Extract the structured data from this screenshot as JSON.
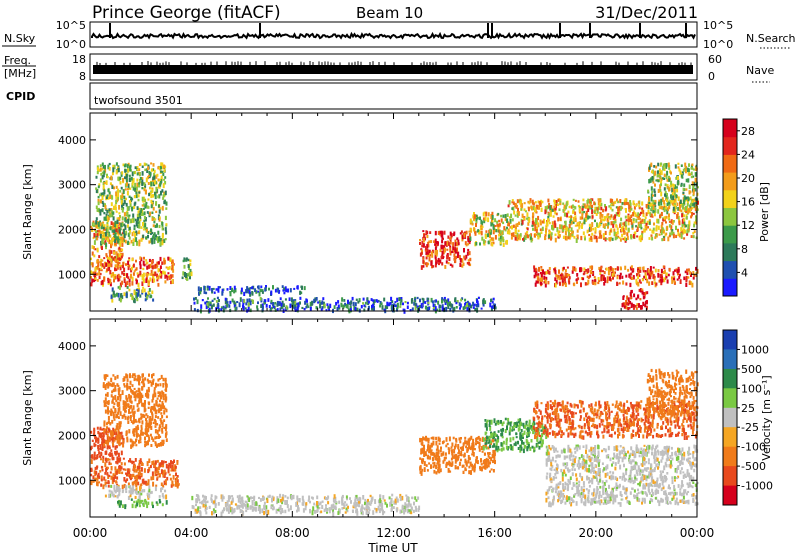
{
  "header": {
    "station": "Prince George (fitACF)",
    "beam": "Beam 10",
    "date": "31/Dec/2011"
  },
  "top_panels": {
    "nsky_label": "N.Sky",
    "nsky_ticks": [
      "10^5",
      "10^0"
    ],
    "nsearch_label": "N.Search",
    "nsearch_ticks": [
      "10^5",
      "10^0"
    ],
    "freq_label_1": "Freq.",
    "freq_label_2": "[MHz]",
    "freq_ticks": [
      "18",
      "8"
    ],
    "nave_label": "Nave",
    "nave_ticks": [
      "60",
      "0"
    ],
    "cpid_label": "CPID",
    "cpid_value": "twofsound 3501"
  },
  "chart_data": [
    {
      "type": "heatmap",
      "name": "power",
      "xlabel": "Time UT",
      "ylabel": "Slant Range [km]",
      "xlim": [
        0,
        24
      ],
      "ylim": [
        180,
        4600
      ],
      "yticks": [
        "1000",
        "2000",
        "3000",
        "4000"
      ],
      "colorbar_label": "Power [dB]",
      "colorbar_ticks": [
        "4",
        "8",
        "12",
        "16",
        "20",
        "24",
        "28"
      ],
      "colorbar_range": [
        0,
        30
      ],
      "colors": [
        "#1a1aff",
        "#1f4fb0",
        "#2d7a5a",
        "#3c9a4a",
        "#8cc63f",
        "#f2d21a",
        "#f39c1a",
        "#f06a14",
        "#e2261d",
        "#d6001c"
      ],
      "regions": [
        {
          "t0": 0.0,
          "t1": 1.3,
          "r0": 1300,
          "r1": 2200,
          "value": 20
        },
        {
          "t0": 0.0,
          "t1": 3.3,
          "r0": 800,
          "r1": 1400,
          "value": 22
        },
        {
          "t0": 0.2,
          "t1": 3.0,
          "r0": 1700,
          "r1": 3500,
          "value": 13
        },
        {
          "t0": 0.8,
          "t1": 2.5,
          "r0": 450,
          "r1": 750,
          "value": 10
        },
        {
          "t0": 3.6,
          "t1": 4.0,
          "r0": 900,
          "r1": 1400,
          "value": 11
        },
        {
          "t0": 4.2,
          "t1": 8.5,
          "r0": 600,
          "r1": 760,
          "value": 5
        },
        {
          "t0": 4.0,
          "t1": 16.0,
          "r0": 220,
          "r1": 500,
          "value": 6
        },
        {
          "t0": 13.0,
          "t1": 15.0,
          "r0": 1200,
          "r1": 2000,
          "value": 26
        },
        {
          "t0": 15.0,
          "t1": 16.5,
          "r0": 1700,
          "r1": 2400,
          "value": 16
        },
        {
          "t0": 16.5,
          "t1": 24.0,
          "r0": 1800,
          "r1": 2700,
          "value": 18
        },
        {
          "t0": 17.5,
          "t1": 24.0,
          "r0": 800,
          "r1": 1200,
          "value": 24
        },
        {
          "t0": 21.0,
          "t1": 22.0,
          "r0": 250,
          "r1": 700,
          "value": 27
        },
        {
          "t0": 22.0,
          "t1": 24.0,
          "r0": 2500,
          "r1": 3500,
          "value": 14
        }
      ]
    },
    {
      "type": "heatmap",
      "name": "velocity",
      "xlabel": "Time UT",
      "ylabel": "Slant Range [km]",
      "xlim": [
        0,
        24
      ],
      "ylim": [
        180,
        4600
      ],
      "yticks": [
        "1000",
        "2000",
        "3000",
        "4000"
      ],
      "xticks": [
        "00:00",
        "04:00",
        "08:00",
        "12:00",
        "16:00",
        "20:00",
        "00:00"
      ],
      "colorbar_label": "Velocity [m s⁻¹]",
      "colorbar_ticks": [
        "1000",
        "500",
        "100",
        "25",
        "-25",
        "-100",
        "-500",
        "-1000"
      ],
      "colors": [
        "#1a3fb0",
        "#2a6fb8",
        "#2d8a4a",
        "#7ac943",
        "#c0c0c0",
        "#f5a623",
        "#f07b1a",
        "#e8491d",
        "#d6001c"
      ],
      "regions": [
        {
          "t0": 0.0,
          "t1": 1.3,
          "r0": 1500,
          "r1": 2200,
          "value": -500
        },
        {
          "t0": 0.0,
          "t1": 3.5,
          "r0": 900,
          "r1": 1500,
          "value": -300
        },
        {
          "t0": 0.5,
          "t1": 3.0,
          "r0": 1800,
          "r1": 3400,
          "value": -150
        },
        {
          "t0": 0.5,
          "t1": 3.0,
          "r0": 650,
          "r1": 900,
          "value": 0
        },
        {
          "t0": 1.0,
          "t1": 3.0,
          "r0": 450,
          "r1": 600,
          "value": 60
        },
        {
          "t0": 4.0,
          "t1": 13.0,
          "r0": 300,
          "r1": 700,
          "value": 0
        },
        {
          "t0": 13.0,
          "t1": 16.0,
          "r0": 1200,
          "r1": 2000,
          "value": -200
        },
        {
          "t0": 15.5,
          "t1": 18.0,
          "r0": 1700,
          "r1": 2400,
          "value": 60
        },
        {
          "t0": 17.5,
          "t1": 24.0,
          "r0": 2000,
          "r1": 2800,
          "value": -300
        },
        {
          "t0": 18.0,
          "t1": 24.0,
          "r0": 500,
          "r1": 1800,
          "value": 0
        },
        {
          "t0": 22.0,
          "t1": 24.0,
          "r0": 2500,
          "r1": 3500,
          "value": -200
        }
      ]
    }
  ]
}
